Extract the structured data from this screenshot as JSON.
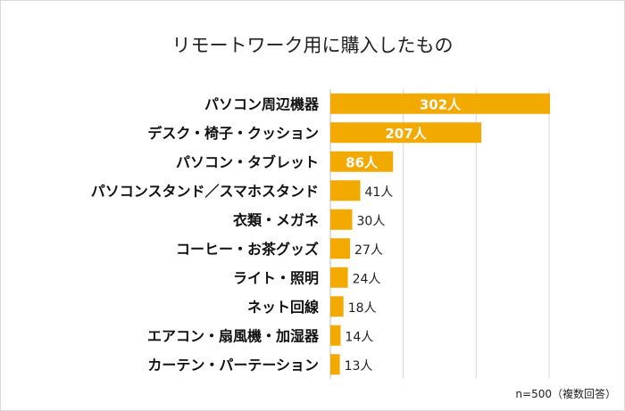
{
  "chart_data": {
    "type": "bar",
    "orientation": "horizontal",
    "title": "リモートワーク用に購入したもの",
    "categories": [
      "パソコン周辺機器",
      "デスク・椅子・クッション",
      "パソコン・タブレット",
      "パソコンスタンド／スマホスタンド",
      "衣類・メガネ",
      "コーヒー・お茶グッズ",
      "ライト・照明",
      "ネット回線",
      "エアコン・扇風機・加湿器",
      "カーテン・パーテーション"
    ],
    "values": [
      302,
      207,
      86,
      41,
      30,
      27,
      24,
      18,
      14,
      13
    ],
    "value_labels": [
      "302人",
      "207人",
      "86人",
      "41人",
      "30人",
      "27人",
      "24人",
      "18人",
      "14人",
      "13人"
    ],
    "xlim": [
      0,
      300
    ],
    "gridlines": [
      0,
      100,
      200,
      300
    ],
    "bar_color": "#f2a900",
    "grid_color": "#d9d9d9",
    "note": "n=500（複数回答）"
  }
}
